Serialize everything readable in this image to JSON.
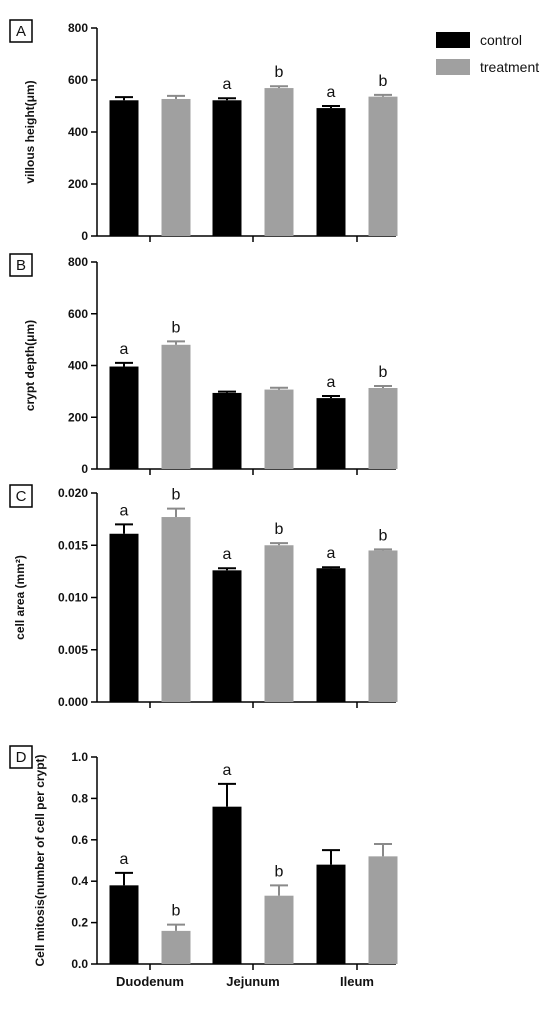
{
  "legend": [
    {
      "name": "control",
      "color": "#000000"
    },
    {
      "name": "treatment",
      "color": "#a0a0a0"
    }
  ],
  "chart_data": [
    {
      "panel": "A",
      "type": "bar",
      "categories": [
        "Duodenum",
        "Jejunum",
        "Ileum"
      ],
      "ylabel": "villous height(μm)",
      "ylim": [
        0,
        800
      ],
      "yticks": [
        "0",
        "200",
        "400",
        "600",
        "800"
      ],
      "series": [
        {
          "name": "control",
          "values": [
            522,
            522,
            492
          ],
          "errors": [
            12,
            8,
            8
          ],
          "sig": [
            "",
            "a",
            "a"
          ]
        },
        {
          "name": "treatment",
          "values": [
            527,
            569,
            536
          ],
          "errors": [
            12,
            7,
            7
          ],
          "sig": [
            "",
            "b",
            "b"
          ]
        }
      ]
    },
    {
      "panel": "B",
      "type": "bar",
      "categories": [
        "Duodenum",
        "Jejunum",
        "Ileum"
      ],
      "ylabel": "crypt depth(μm)",
      "ylim": [
        0,
        800
      ],
      "yticks": [
        "0",
        "200",
        "400",
        "600",
        "800"
      ],
      "series": [
        {
          "name": "control",
          "values": [
            396,
            294,
            274
          ],
          "errors": [
            14,
            5,
            8
          ],
          "sig": [
            "a",
            "",
            "a"
          ]
        },
        {
          "name": "treatment",
          "values": [
            480,
            307,
            313
          ],
          "errors": [
            13,
            7,
            8
          ],
          "sig": [
            "b",
            "",
            "b"
          ]
        }
      ]
    },
    {
      "panel": "C",
      "type": "bar",
      "categories": [
        "Duodenum",
        "Jejunum",
        "Ileum"
      ],
      "ylabel": "cell area (mm²)",
      "ylim": [
        0,
        0.02
      ],
      "yticks": [
        "0.000",
        "0.005",
        "0.010",
        "0.015",
        "0.020"
      ],
      "series": [
        {
          "name": "control",
          "values": [
            0.0161,
            0.0126,
            0.0128
          ],
          "errors": [
            0.0009,
            0.0002,
            0.0001
          ],
          "sig": [
            "a",
            "a",
            "a"
          ]
        },
        {
          "name": "treatment",
          "values": [
            0.0177,
            0.015,
            0.0145
          ],
          "errors": [
            0.0008,
            0.0002,
            0.0001
          ],
          "sig": [
            "b",
            "b",
            "b"
          ]
        }
      ]
    },
    {
      "panel": "D",
      "type": "bar",
      "categories": [
        "Duodenum",
        "Jejunum",
        "Ileum"
      ],
      "ylabel": "Cell mitosis(number of cell per crypt)",
      "ylim": [
        0,
        1.0
      ],
      "yticks": [
        "0.0",
        "0.2",
        "0.4",
        "0.6",
        "0.8",
        "1.0"
      ],
      "series": [
        {
          "name": "control",
          "values": [
            0.38,
            0.76,
            0.48
          ],
          "errors": [
            0.06,
            0.11,
            0.07
          ],
          "sig": [
            "a",
            "a",
            ""
          ]
        },
        {
          "name": "treatment",
          "values": [
            0.16,
            0.33,
            0.52
          ],
          "errors": [
            0.03,
            0.05,
            0.06
          ],
          "sig": [
            "b",
            "b",
            ""
          ]
        }
      ]
    }
  ]
}
